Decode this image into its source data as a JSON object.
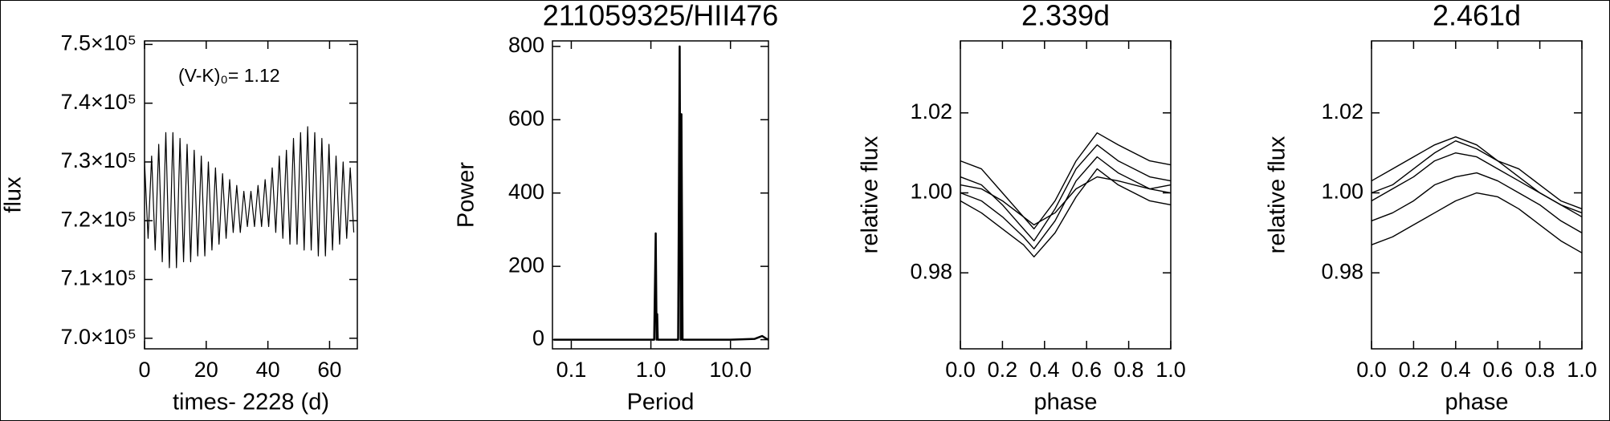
{
  "chart_data": [
    {
      "type": "line",
      "color": "#000000",
      "ylabel": "flux",
      "xlabel": "times- 2228 (d)",
      "annotation": "(V-K)₀= 1.12",
      "xlim": [
        0,
        69
      ],
      "ylim": [
        698200,
        750600
      ],
      "xticks": [
        0,
        20,
        40,
        60
      ],
      "yticks": [
        {
          "value": 700000,
          "label": "7.0×10⁵"
        },
        {
          "value": 710000,
          "label": "7.1×10⁵"
        },
        {
          "value": 720000,
          "label": "7.2×10⁵"
        },
        {
          "value": 730000,
          "label": "7.3×10⁵"
        },
        {
          "value": 740000,
          "label": "7.4×10⁵"
        },
        {
          "value": 750000,
          "label": "7.5×10⁵"
        }
      ],
      "x": [
        0,
        1.15,
        2.3,
        3.45,
        4.6,
        5.75,
        6.9,
        8.05,
        9.2,
        10.35,
        11.5,
        12.65,
        13.8,
        14.95,
        16.1,
        17.25,
        18.4,
        19.55,
        20.7,
        21.85,
        23,
        24.15,
        25.3,
        26.45,
        27.6,
        28.75,
        29.9,
        31.05,
        32.2,
        33.35,
        34.5,
        35.65,
        36.8,
        37.95,
        39.1,
        40.25,
        41.4,
        42.55,
        43.7,
        44.85,
        46,
        47.15,
        48.3,
        49.45,
        50.6,
        51.75,
        52.9,
        54.05,
        55.2,
        56.35,
        57.5,
        58.65,
        59.8,
        60.95,
        62.1,
        63.25,
        64.4,
        65.55,
        66.7,
        67.85
      ],
      "values": [
        730000,
        717000,
        731000,
        715000,
        733000,
        713000,
        735000,
        712000,
        735000,
        712000,
        734000,
        713000,
        733000,
        713000,
        732000,
        714000,
        731000,
        714000,
        730000,
        715000,
        729000,
        716000,
        728000,
        717000,
        727000,
        718000,
        726000,
        718000,
        725000,
        719000,
        725000,
        719000,
        726000,
        719000,
        727000,
        719000,
        729000,
        718000,
        731000,
        717000,
        732000,
        716000,
        734000,
        716000,
        735000,
        715000,
        736000,
        715000,
        735000,
        714000,
        734000,
        714000,
        733000,
        715000,
        731000,
        716000,
        730000,
        717000,
        729000,
        718000
      ]
    },
    {
      "type": "line",
      "color": "#000000",
      "title": "211059325/HII476",
      "ylabel": "Power",
      "xlabel": "Period",
      "xlog": true,
      "xlim": [
        0.058,
        30
      ],
      "ylim": [
        -25,
        815
      ],
      "xticks": [
        0.1,
        {
          "value": 1,
          "label": "1.0"
        },
        {
          "value": 10,
          "label": "10.0"
        }
      ],
      "yticks": [
        0,
        200,
        400,
        600,
        800
      ],
      "x": [
        0.06,
        0.1,
        0.3,
        0.8,
        1.1,
        1.15,
        1.18,
        1.2,
        1.22,
        2.2,
        2.3,
        2.37,
        2.42,
        2.5,
        5,
        10,
        20,
        25,
        28,
        30
      ],
      "values": [
        0,
        0,
        0,
        0,
        0,
        290,
        0,
        70,
        0,
        0,
        800,
        0,
        615,
        0,
        0,
        0,
        2,
        10,
        3,
        0
      ]
    },
    {
      "type": "line",
      "color": "#000000",
      "title": "2.339d",
      "ylabel": "relative flux",
      "xlabel": "phase",
      "xlim": [
        0,
        1
      ],
      "ylim": [
        0.961,
        1.038
      ],
      "xticks": [
        {
          "value": 0,
          "label": "0.0"
        },
        0.2,
        0.4,
        0.6,
        0.8,
        {
          "value": 1,
          "label": "1.0"
        }
      ],
      "yticks": [
        0.98,
        {
          "value": 1,
          "label": "1.00"
        },
        1.02
      ],
      "x": [
        0,
        0.1,
        0.2,
        0.3,
        0.35,
        0.45,
        0.55,
        0.65,
        0.75,
        0.9,
        1
      ],
      "series": [
        {
          "values": [
            1.008,
            1.006,
            1.0,
            0.994,
            0.991,
            0.998,
            1.008,
            1.015,
            1.012,
            1.008,
            1.007
          ]
        },
        {
          "values": [
            1.004,
            1.002,
            0.997,
            0.991,
            0.988,
            0.996,
            1.006,
            1.012,
            1.008,
            1.004,
            1.003
          ]
        },
        {
          "values": [
            1.0,
            0.998,
            0.994,
            0.989,
            0.986,
            0.993,
            1.003,
            1.009,
            1.005,
            1.001,
            1.0
          ]
        },
        {
          "values": [
            0.998,
            0.995,
            0.991,
            0.987,
            0.984,
            0.99,
            0.999,
            1.006,
            1.002,
            0.998,
            0.997
          ]
        },
        {
          "values": [
            1.002,
            1.001,
            0.998,
            0.994,
            0.992,
            0.995,
            1.001,
            1.004,
            1.003,
            1.001,
            1.002
          ]
        }
      ]
    },
    {
      "type": "line",
      "color": "#000000",
      "title": "2.461d",
      "ylabel": "relative flux",
      "xlabel": "phase",
      "xlim": [
        0,
        1
      ],
      "ylim": [
        0.961,
        1.038
      ],
      "xticks": [
        {
          "value": 0,
          "label": "0.0"
        },
        0.2,
        0.4,
        0.6,
        0.8,
        {
          "value": 1,
          "label": "1.0"
        }
      ],
      "yticks": [
        0.98,
        {
          "value": 1,
          "label": "1.00"
        },
        1.02
      ],
      "x": [
        0,
        0.1,
        0.2,
        0.3,
        0.4,
        0.5,
        0.6,
        0.7,
        0.8,
        0.9,
        1
      ],
      "series": [
        {
          "values": [
            1.003,
            1.006,
            1.009,
            1.012,
            1.014,
            1.012,
            1.008,
            1.004,
            1.0,
            0.997,
            0.995
          ]
        },
        {
          "values": [
            0.998,
            1.001,
            1.004,
            1.008,
            1.01,
            1.009,
            1.006,
            1.003,
            1.0,
            0.997,
            0.994
          ]
        },
        {
          "values": [
            0.993,
            0.995,
            0.998,
            1.002,
            1.004,
            1.005,
            1.003,
            1.0,
            0.997,
            0.993,
            0.99
          ]
        },
        {
          "values": [
            0.987,
            0.989,
            0.992,
            0.995,
            0.998,
            1.0,
            0.999,
            0.996,
            0.992,
            0.988,
            0.985
          ]
        },
        {
          "values": [
            1.0,
            1.002,
            1.006,
            1.01,
            1.013,
            1.011,
            1.008,
            1.006,
            1.002,
            0.998,
            0.996
          ]
        }
      ]
    }
  ]
}
